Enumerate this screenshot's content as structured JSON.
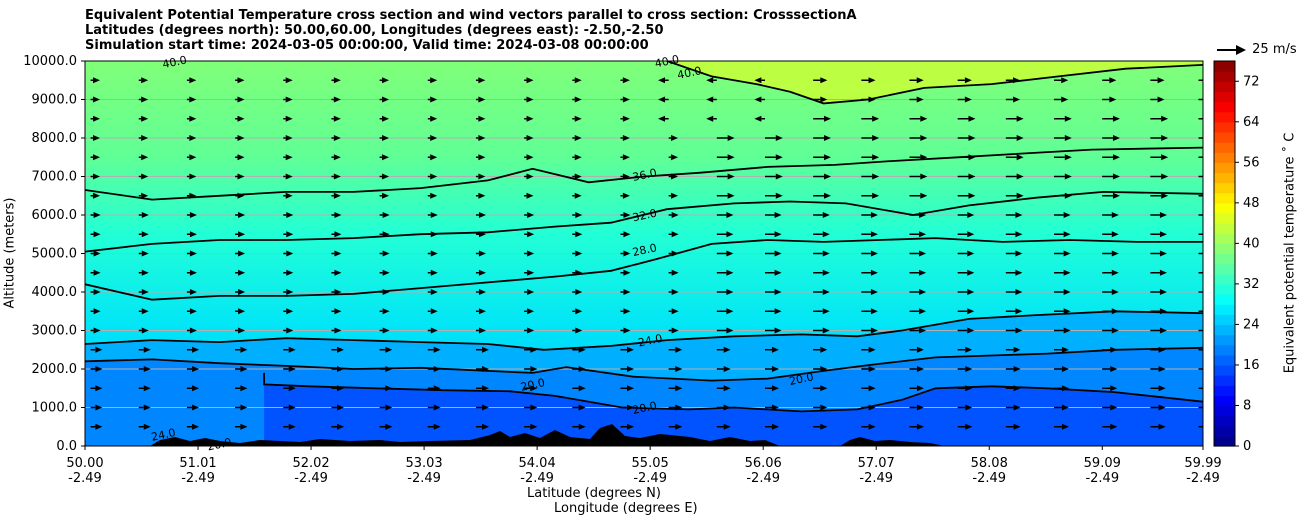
{
  "chart_data": {
    "type": "contour",
    "title_lines": [
      "Equivalent Potential Temperature cross section and wind vectors parallel to cross section: CrosssectionA",
      "Latitudes (degrees north): 50.00,60.00, Longitudes (degrees east): -2.50,-2.50",
      "Simulation start time: 2024-03-05 00:00:00, Valid time: 2024-03-08 00:00:00"
    ],
    "ylabel": "Altitude (meters)",
    "xlabel_lines": [
      "Latitude (degrees N)",
      "Longitude (degrees E)"
    ],
    "ylim": [
      0,
      10000
    ],
    "xlim": [
      50.0,
      59.99
    ],
    "y_ticks": [
      "0.0",
      "1000.0",
      "2000.0",
      "3000.0",
      "4000.0",
      "5000.0",
      "6000.0",
      "7000.0",
      "8000.0",
      "9000.0",
      "10000.0"
    ],
    "x_ticks": [
      {
        "lat": "50.00",
        "lon": "-2.49"
      },
      {
        "lat": "51.01",
        "lon": "-2.49"
      },
      {
        "lat": "52.02",
        "lon": "-2.49"
      },
      {
        "lat": "53.03",
        "lon": "-2.49"
      },
      {
        "lat": "54.04",
        "lon": "-2.49"
      },
      {
        "lat": "55.05",
        "lon": "-2.49"
      },
      {
        "lat": "56.06",
        "lon": "-2.49"
      },
      {
        "lat": "57.07",
        "lon": "-2.49"
      },
      {
        "lat": "58.08",
        "lon": "-2.49"
      },
      {
        "lat": "59.09",
        "lon": "-2.49"
      },
      {
        "lat": "59.99",
        "lon": "-2.49"
      }
    ],
    "grid": "horizontal",
    "colorbar": {
      "label": "Equivalent potential temperature ˚ C",
      "min": 0,
      "max": 76,
      "step": 2,
      "ticks": [
        "0",
        "8",
        "16",
        "24",
        "32",
        "40",
        "48",
        "56",
        "64",
        "72"
      ]
    },
    "contour_labels": [
      "40.0",
      "40.0",
      "40.0",
      "36.0",
      "32.0",
      "28.0",
      "24.0",
      "20.0",
      "20.0",
      "20.0",
      "20.0",
      "24.0"
    ],
    "quiver_key": {
      "label": "25 m/s",
      "placement": "top-right"
    },
    "contour_lines": [
      {
        "level": 20,
        "points": [
          [
            50.0,
            2200
          ],
          [
            50.6,
            2250
          ],
          [
            51.2,
            2150
          ],
          [
            51.8,
            2080
          ],
          [
            52.4,
            2000
          ],
          [
            53.0,
            2030
          ],
          [
            53.6,
            1950
          ],
          [
            54.0,
            1900
          ],
          [
            54.3,
            2050
          ],
          [
            54.9,
            1800
          ],
          [
            55.6,
            1700
          ],
          [
            56.1,
            1750
          ],
          [
            56.6,
            1950
          ],
          [
            57.0,
            2100
          ],
          [
            57.6,
            2300
          ],
          [
            58.1,
            2350
          ],
          [
            58.6,
            2400
          ],
          [
            59.2,
            2500
          ],
          [
            59.99,
            2550
          ]
        ]
      },
      {
        "level": 20,
        "points": [
          [
            51.6,
            1900
          ],
          [
            51.6,
            1600
          ],
          [
            52.0,
            1550
          ],
          [
            52.6,
            1500
          ],
          [
            53.2,
            1450
          ],
          [
            53.8,
            1420
          ],
          [
            54.2,
            1300
          ],
          [
            54.8,
            1000
          ],
          [
            55.4,
            950
          ],
          [
            55.8,
            1000
          ],
          [
            56.4,
            900
          ],
          [
            56.9,
            950
          ],
          [
            57.3,
            1200
          ],
          [
            57.6,
            1500
          ],
          [
            58.1,
            1550
          ],
          [
            58.6,
            1500
          ],
          [
            59.2,
            1400
          ],
          [
            59.99,
            1150
          ]
        ]
      },
      {
        "level": 24,
        "points": [
          [
            50.0,
            2650
          ],
          [
            50.6,
            2750
          ],
          [
            51.2,
            2700
          ],
          [
            51.8,
            2800
          ],
          [
            52.4,
            2750
          ],
          [
            53.0,
            2700
          ],
          [
            53.6,
            2650
          ],
          [
            54.1,
            2500
          ],
          [
            54.7,
            2600
          ],
          [
            55.2,
            2750
          ],
          [
            55.8,
            2850
          ],
          [
            56.4,
            2900
          ],
          [
            56.9,
            2850
          ],
          [
            57.3,
            3000
          ],
          [
            57.9,
            3300
          ],
          [
            58.5,
            3400
          ],
          [
            59.2,
            3500
          ],
          [
            59.99,
            3450
          ]
        ]
      },
      {
        "level": 28,
        "points": [
          [
            50.0,
            4200
          ],
          [
            50.6,
            3800
          ],
          [
            51.2,
            3900
          ],
          [
            51.8,
            3900
          ],
          [
            52.4,
            3950
          ],
          [
            53.0,
            4100
          ],
          [
            53.6,
            4250
          ],
          [
            54.2,
            4400
          ],
          [
            54.7,
            4550
          ],
          [
            55.1,
            4850
          ],
          [
            55.6,
            5250
          ],
          [
            56.1,
            5350
          ],
          [
            56.6,
            5300
          ],
          [
            57.1,
            5350
          ],
          [
            57.6,
            5400
          ],
          [
            58.2,
            5300
          ],
          [
            58.8,
            5350
          ],
          [
            59.4,
            5300
          ],
          [
            59.99,
            5300
          ]
        ]
      },
      {
        "level": 32,
        "points": [
          [
            50.0,
            5050
          ],
          [
            50.6,
            5250
          ],
          [
            51.2,
            5350
          ],
          [
            51.8,
            5350
          ],
          [
            52.4,
            5400
          ],
          [
            53.0,
            5500
          ],
          [
            53.6,
            5550
          ],
          [
            54.2,
            5700
          ],
          [
            54.7,
            5800
          ],
          [
            55.2,
            6150
          ],
          [
            55.8,
            6300
          ],
          [
            56.3,
            6350
          ],
          [
            56.8,
            6300
          ],
          [
            57.4,
            6000
          ],
          [
            57.9,
            6250
          ],
          [
            58.5,
            6450
          ],
          [
            59.1,
            6600
          ],
          [
            59.99,
            6550
          ]
        ]
      },
      {
        "level": 36,
        "points": [
          [
            50.0,
            6650
          ],
          [
            50.6,
            6400
          ],
          [
            51.2,
            6500
          ],
          [
            51.8,
            6600
          ],
          [
            52.4,
            6600
          ],
          [
            53.0,
            6700
          ],
          [
            53.6,
            6900
          ],
          [
            54.0,
            7200
          ],
          [
            54.5,
            6850
          ],
          [
            55.0,
            7000
          ],
          [
            55.5,
            7100
          ],
          [
            56.1,
            7250
          ],
          [
            56.7,
            7300
          ],
          [
            57.2,
            7400
          ],
          [
            57.8,
            7500
          ],
          [
            58.4,
            7600
          ],
          [
            59.0,
            7700
          ],
          [
            59.99,
            7750
          ]
        ]
      },
      {
        "level": 40,
        "points": [
          [
            55.2,
            10000
          ],
          [
            55.6,
            9600
          ],
          [
            56.0,
            9400
          ],
          [
            56.3,
            9200
          ],
          [
            56.6,
            8900
          ],
          [
            57.0,
            9000
          ],
          [
            57.5,
            9300
          ],
          [
            58.1,
            9400
          ],
          [
            58.7,
            9600
          ],
          [
            59.3,
            9800
          ],
          [
            59.99,
            9900
          ]
        ]
      }
    ]
  }
}
